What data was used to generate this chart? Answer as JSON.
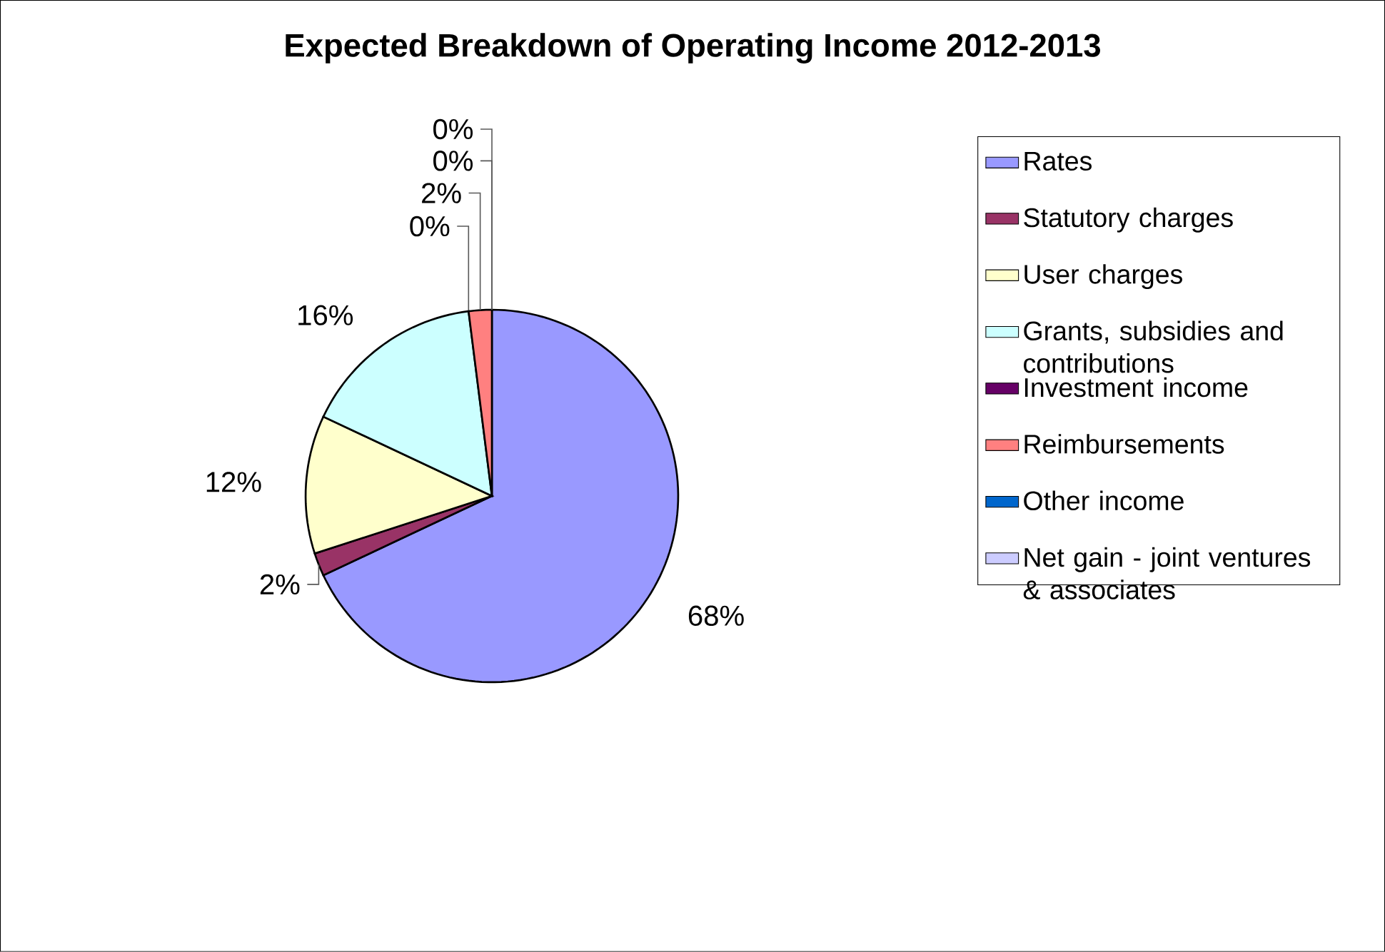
{
  "chart_data": {
    "type": "pie",
    "title": "Expected Breakdown of Operating Income 2012-2013",
    "categories": [
      "Rates",
      "Statutory charges",
      "User charges",
      "Grants, subsidies and contributions",
      "Investment income",
      "Reimbursements",
      "Other income",
      "Net gain -  joint ventures & associates"
    ],
    "values": [
      68,
      2,
      12,
      16,
      0,
      2,
      0,
      0
    ],
    "value_labels": [
      "68%",
      "2%",
      "12%",
      "16%",
      "0%",
      "2%",
      "0%",
      "0%"
    ],
    "colors": [
      "#9999ff",
      "#993366",
      "#ffffcc",
      "#ccffff",
      "#660066",
      "#ff8080",
      "#0066cc",
      "#ccccff"
    ],
    "legend": "right"
  }
}
